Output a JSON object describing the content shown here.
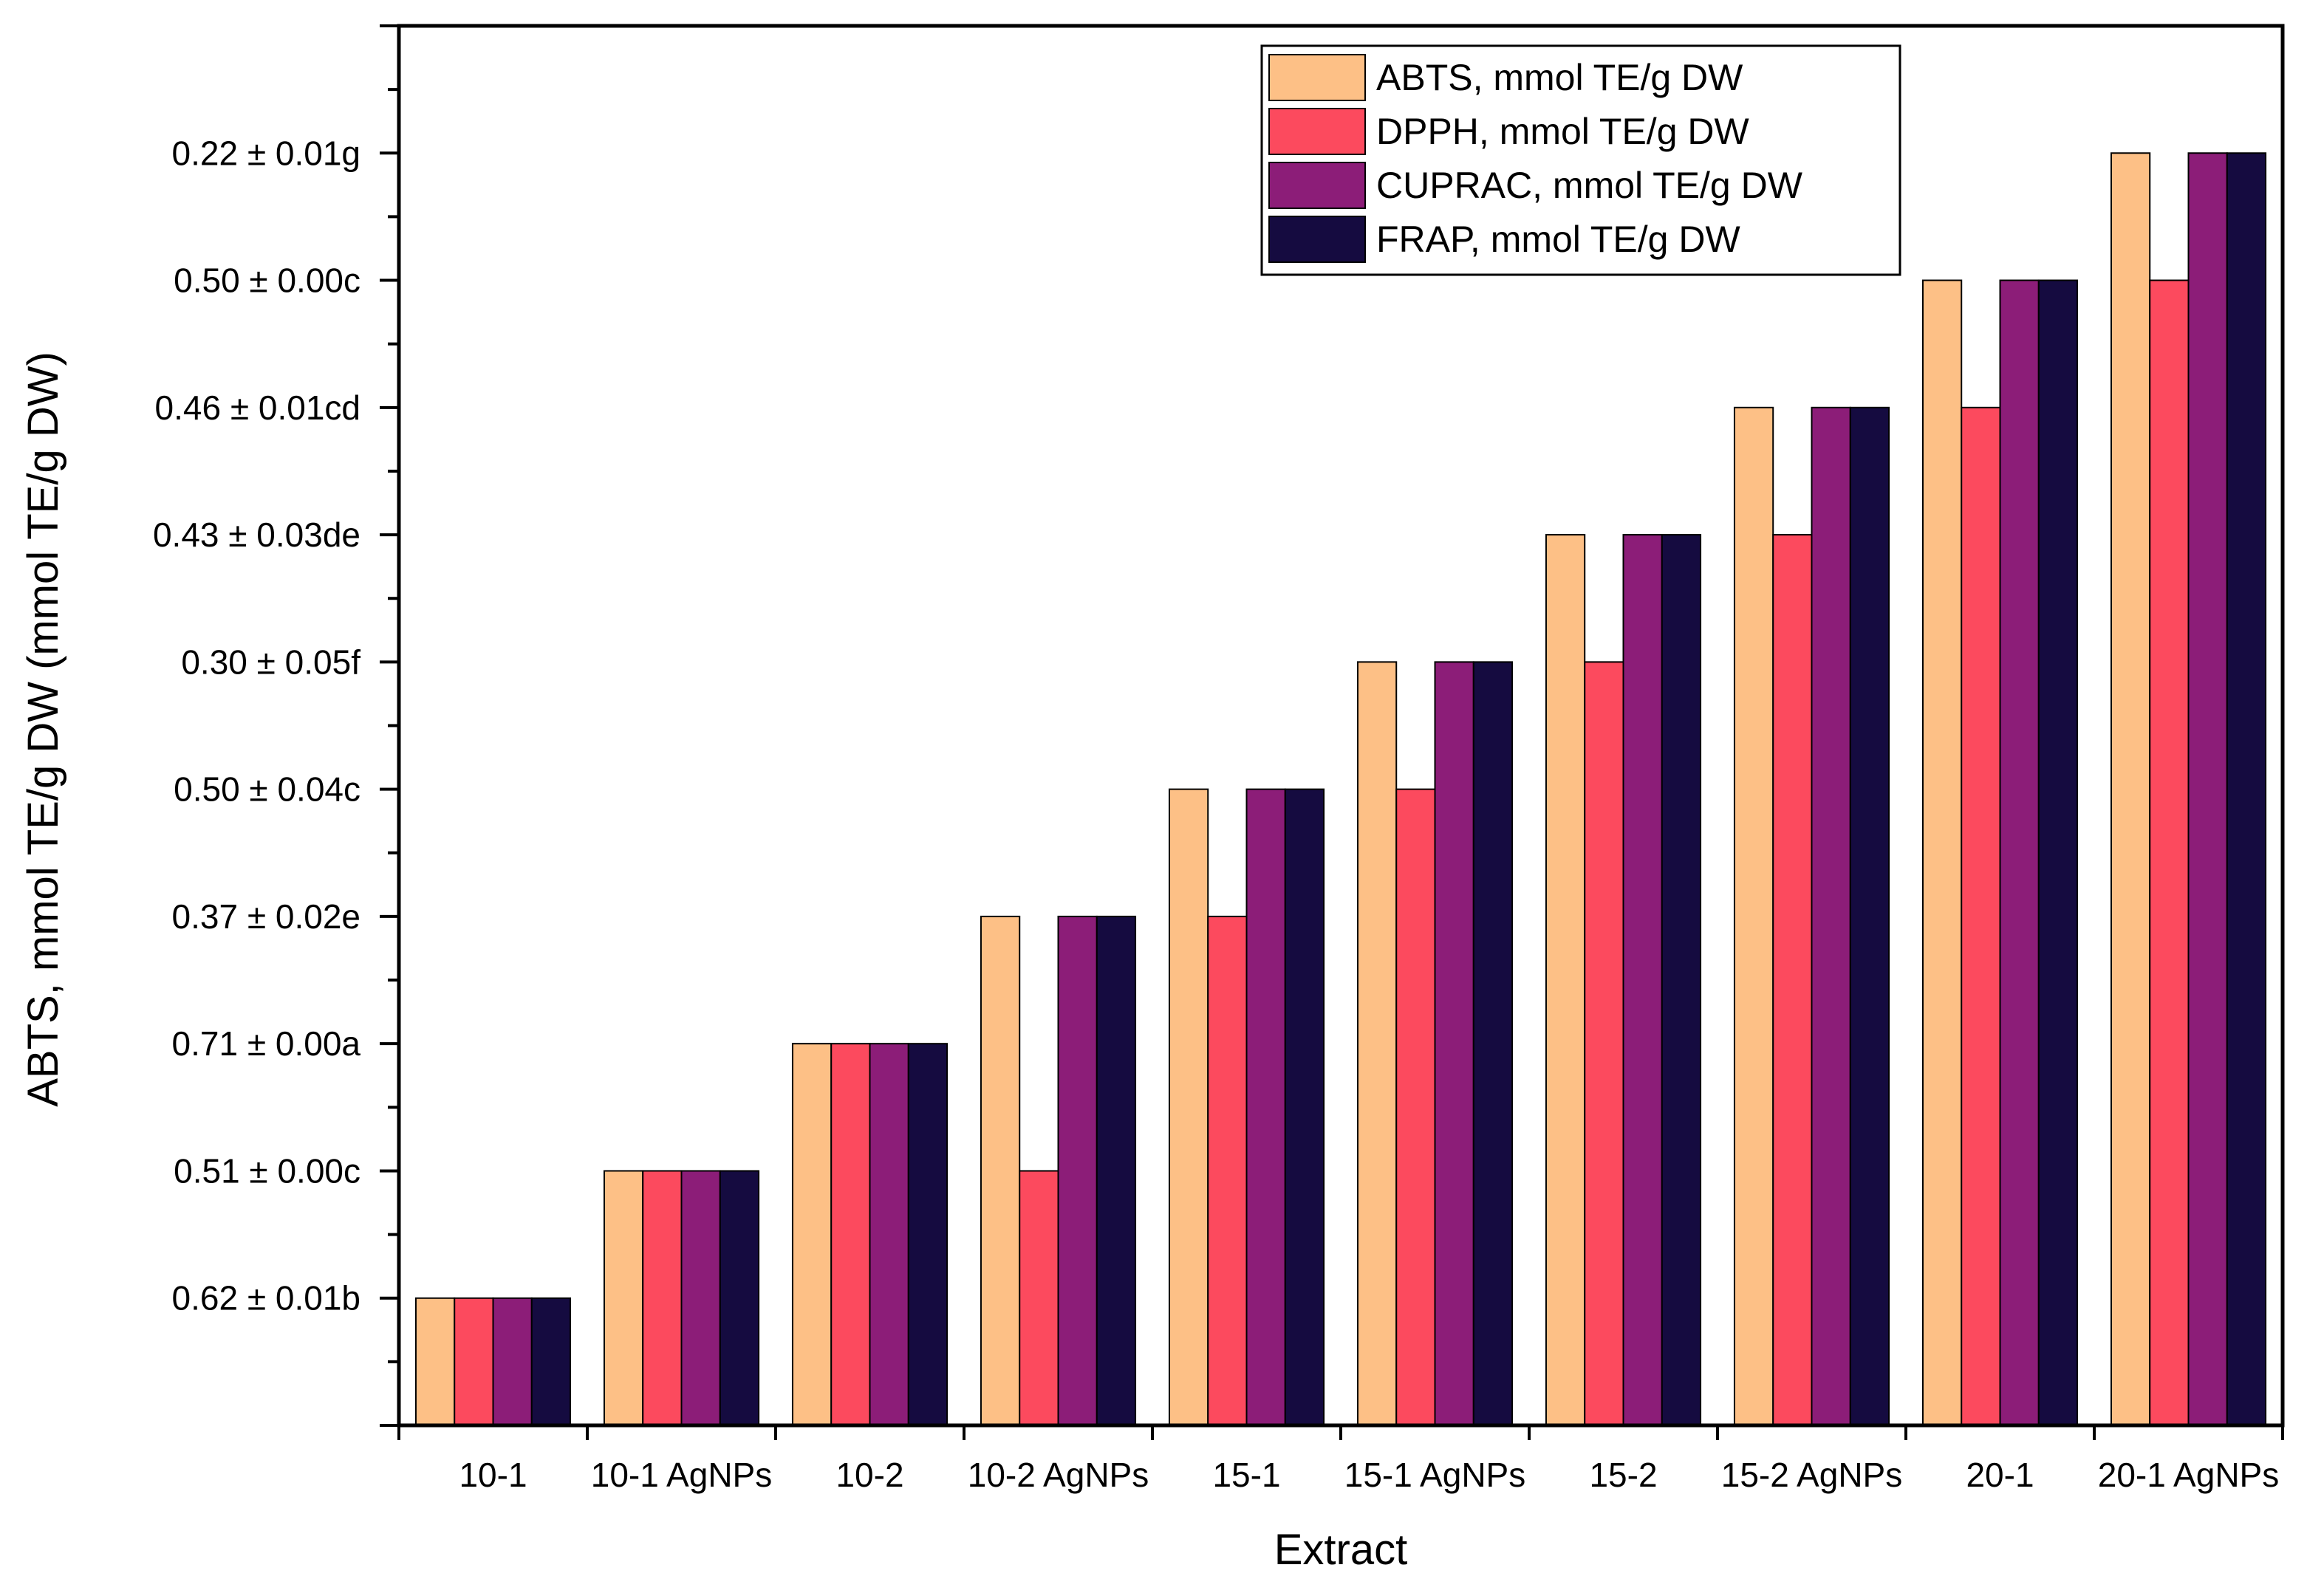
{
  "chart_data": {
    "type": "bar",
    "title": "",
    "xlabel": "Extract",
    "ylabel": "ABTS, mmol TE/g DW (mmol TE/g DW)",
    "categories": [
      "10-1",
      "10-1 AgNPs",
      "10-2",
      "10-2 AgNPs",
      "15-1",
      "15-1 AgNPs",
      "15-2",
      "15-2 AgNPs",
      "20-1",
      "20-1 AgNPs"
    ],
    "y_tick_labels": [
      "0.62 ± 0.01b",
      "0.51 ± 0.00c",
      "0.71 ± 0.00a",
      "0.37 ± 0.02e",
      "0.50 ± 0.04c",
      "0.30 ± 0.05f",
      "0.43 ± 0.03de",
      "0.46 ± 0.01cd",
      "0.50 ± 0.00c",
      "0.22 ± 0.01g"
    ],
    "ylim": [
      0,
      11
    ],
    "grid": false,
    "legend_position": "top-right",
    "series": [
      {
        "name": "ABTS, mmol TE/g DW",
        "color": "#FDC086",
        "values": [
          1,
          2,
          3,
          4,
          5,
          6,
          7,
          8,
          9,
          10
        ]
      },
      {
        "name": "DPPH, mmol TE/g DW",
        "color": "#FC4A5E",
        "values": [
          1,
          2,
          3,
          2,
          4,
          5,
          6,
          7,
          8,
          9
        ]
      },
      {
        "name": "CUPRAC, mmol TE/g DW",
        "color": "#8C1D78",
        "values": [
          1,
          2,
          3,
          4,
          5,
          6,
          7,
          8,
          9,
          10
        ]
      },
      {
        "name": "FRAP, mmol TE/g DW",
        "color": "#150B40",
        "values": [
          1,
          2,
          3,
          4,
          5,
          6,
          7,
          8,
          9,
          10
        ]
      }
    ]
  }
}
